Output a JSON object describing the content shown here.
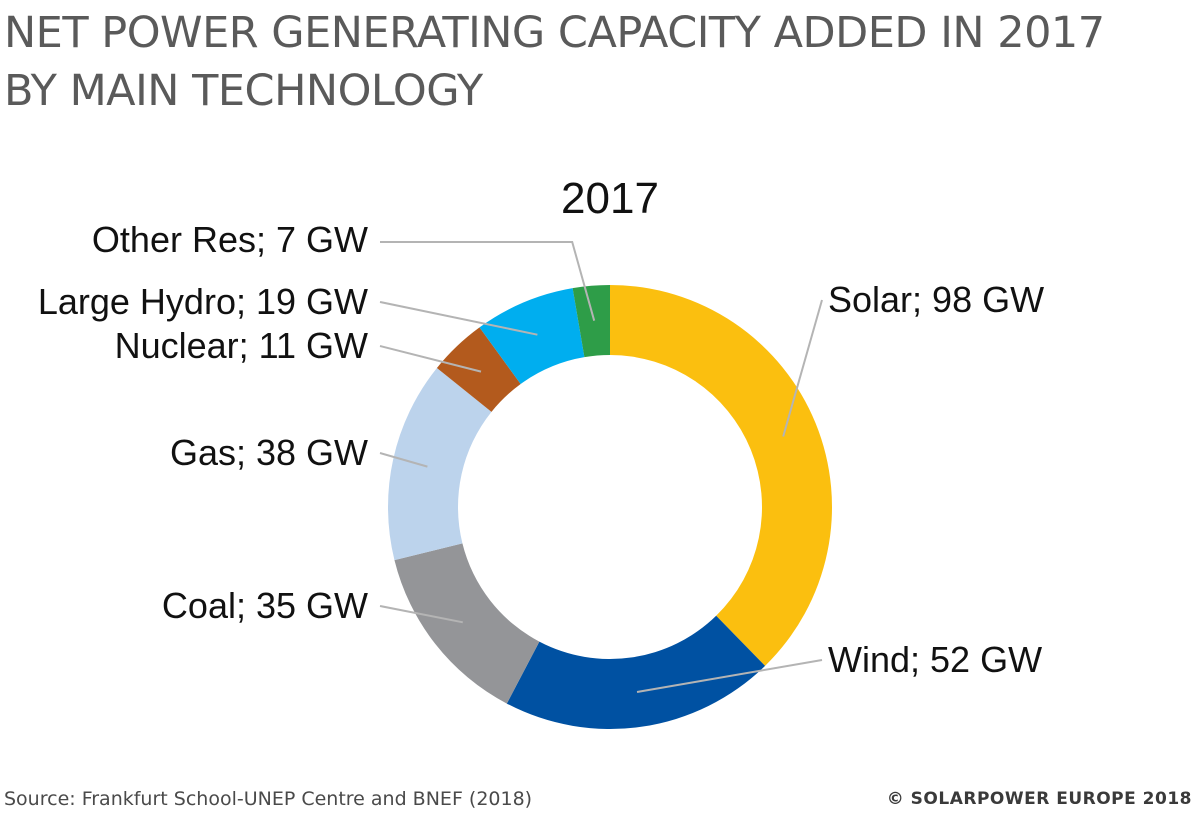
{
  "page": {
    "title_line1": "NET POWER GENERATING CAPACITY ADDED IN 2017",
    "title_line2": "BY MAIN TECHNOLOGY",
    "source": "Source: Frankfurt School-UNEP Centre and BNEF (2018)",
    "copyright": "© SOLARPOWER EUROPE 2018"
  },
  "chart_data": {
    "type": "pie",
    "variant": "donut",
    "title": "2017",
    "unit": "GW",
    "slices": [
      {
        "name": "Solar",
        "value": 98,
        "color": "#fbbf0f",
        "label": "Solar; 98 GW"
      },
      {
        "name": "Wind",
        "value": 52,
        "color": "#0051a2",
        "label": "Wind; 52 GW"
      },
      {
        "name": "Coal",
        "value": 35,
        "color": "#949598",
        "label": "Coal; 35 GW"
      },
      {
        "name": "Gas",
        "value": 38,
        "color": "#bcd3ec",
        "label": "Gas; 38 GW"
      },
      {
        "name": "Nuclear",
        "value": 11,
        "color": "#b35a1d",
        "label": "Nuclear; 11 GW"
      },
      {
        "name": "Large Hydro",
        "value": 19,
        "color": "#00aeef",
        "label": "Large Hydro; 19 GW"
      },
      {
        "name": "Other Res",
        "value": 7,
        "color": "#2e9d48",
        "label": "Other Res; 7 GW"
      }
    ],
    "start": "12 o'clock",
    "direction": "clockwise"
  }
}
